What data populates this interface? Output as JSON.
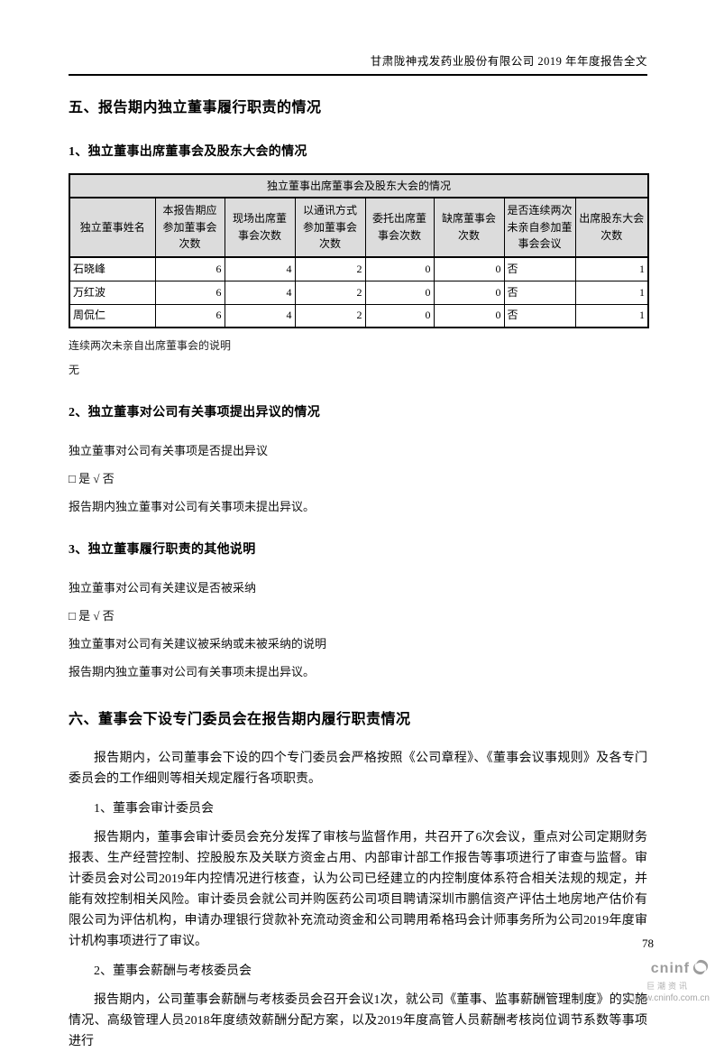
{
  "page": {
    "header": "甘肃陇神戎发药业股份有限公司 2019 年年度报告全文",
    "page_number": "78"
  },
  "section5": {
    "title": "五、报告期内独立董事履行职责的情况",
    "sub1": {
      "title": "1、独立董事出席董事会及股东大会的情况",
      "table": {
        "caption": "独立董事出席董事会及股东大会的情况",
        "columns": [
          "独立董事姓名",
          "本报告期应参加董事会次数",
          "现场出席董事会次数",
          "以通讯方式参加董事会次数",
          "委托出席董事会次数",
          "缺席董事会次数",
          "是否连续两次未亲自参加董事会会议",
          "出席股东大会次数"
        ],
        "rows": [
          [
            "石晓峰",
            "6",
            "4",
            "2",
            "0",
            "0",
            "否",
            "1"
          ],
          [
            "万红波",
            "6",
            "4",
            "2",
            "0",
            "0",
            "否",
            "1"
          ],
          [
            "周侃仁",
            "6",
            "4",
            "2",
            "0",
            "0",
            "否",
            "1"
          ]
        ]
      },
      "note_label": "连续两次未亲自出席董事会的说明",
      "note_value": "无"
    },
    "sub2": {
      "title": "2、独立董事对公司有关事项提出异议的情况",
      "question": "独立董事对公司有关事项是否提出异议",
      "choice": "□ 是 √ 否",
      "statement": "报告期内独立董事对公司有关事项未提出异议。"
    },
    "sub3": {
      "title": "3、独立董事履行职责的其他说明",
      "question": "独立董事对公司有关建议是否被采纳",
      "choice": "□ 是 √ 否",
      "note_label": "独立董事对公司有关建议被采纳或未被采纳的说明",
      "statement": "报告期内独立董事对公司有关事项未提出异议。"
    }
  },
  "section6": {
    "title": "六、董事会下设专门委员会在报告期内履行职责情况",
    "intro": "报告期内，公司董事会下设的四个专门委员会严格按照《公司章程》、《董事会议事规则》及各专门委员会的工作细则等相关规定履行各项职责。",
    "sub1_title": "1、董事会审计委员会",
    "sub1_text": "报告期内，董事会审计委员会充分发挥了审核与监督作用，共召开了6次会议，重点对公司定期财务报表、生产经营控制、控股股东及关联方资金占用、内部审计部工作报告等事项进行了审查与监督。审计委员会对公司2019年内控情况进行核查，认为公司已经建立的内控制度体系符合相关法规的规定，并能有效控制相关风险。审计委员会就公司并购医药公司项目聘请深圳市鹏信资产评估土地房地产估价有限公司为评估机构，申请办理银行贷款补充流动资金和公司聘用希格玛会计师事务所为公司2019年度审计机构事项进行了审议。",
    "sub2_title": "2、董事会薪酬与考核委员会",
    "sub2_text": "报告期内，公司董事会薪酬与考核委员会召开会议1次，就公司《董事、监事薪酬管理制度》的实施情况、高级管理人员2018年度绩效薪酬分配方案，以及2019年度高管人员薪酬考核岗位调节系数等事项进行"
  },
  "watermark": {
    "brand": "cninf",
    "brand_cn": "巨潮资讯",
    "url": "www.cninfo.com.cn"
  },
  "colors": {
    "table_header_bg": "#dcdcdc",
    "watermark_gray": "#a6a6a6"
  }
}
